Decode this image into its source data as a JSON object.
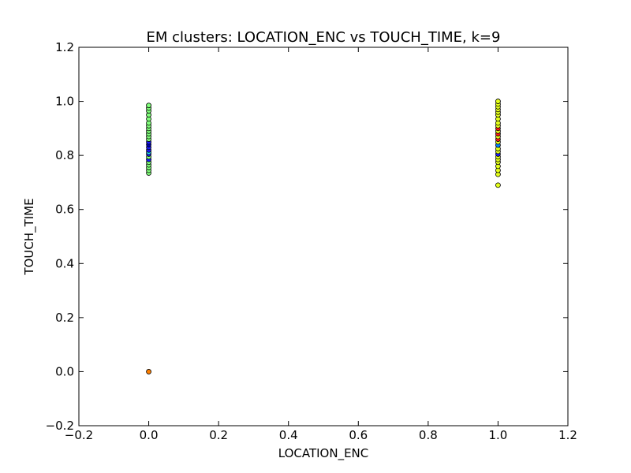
{
  "chart_data": {
    "type": "scatter",
    "title": "EM clusters: LOCATION_ENC vs TOUCH_TIME, k=9",
    "xlabel": "LOCATION_ENC",
    "ylabel": "TOUCH_TIME",
    "xlim": [
      -0.2,
      1.2
    ],
    "ylim": [
      -0.2,
      1.2
    ],
    "xticks": [
      -0.2,
      0.0,
      0.2,
      0.4,
      0.6,
      0.8,
      1.0,
      1.2
    ],
    "yticks": [
      -0.2,
      0.0,
      0.2,
      0.4,
      0.6,
      0.8,
      1.0,
      1.2
    ],
    "xtick_labels": [
      "−0.2",
      "0.0",
      "0.2",
      "0.4",
      "0.6",
      "0.8",
      "1.0",
      "1.2"
    ],
    "ytick_labels": [
      "−0.2",
      "0.0",
      "0.2",
      "0.4",
      "0.6",
      "0.8",
      "1.0",
      "1.2"
    ],
    "grid": false,
    "points": [
      {
        "x": 0,
        "y": 0.0,
        "color": "#ff7f00"
      },
      {
        "x": 0,
        "y": 0.735,
        "color": "#80ff7a"
      },
      {
        "x": 0,
        "y": 0.745,
        "color": "#80ff7a"
      },
      {
        "x": 0,
        "y": 0.755,
        "color": "#80ff7a"
      },
      {
        "x": 0,
        "y": 0.765,
        "color": "#80ff7a"
      },
      {
        "x": 0,
        "y": 0.775,
        "color": "#80ff7a"
      },
      {
        "x": 0,
        "y": 0.785,
        "color": "#1a1aff"
      },
      {
        "x": 0,
        "y": 0.795,
        "color": "#80ff7a"
      },
      {
        "x": 0,
        "y": 0.805,
        "color": "#1a1aff"
      },
      {
        "x": 0,
        "y": 0.812,
        "color": "#20e0ff"
      },
      {
        "x": 0,
        "y": 0.82,
        "color": "#1a1aff"
      },
      {
        "x": 0,
        "y": 0.83,
        "color": "#1a1aff"
      },
      {
        "x": 0,
        "y": 0.84,
        "color": "#0000b0"
      },
      {
        "x": 0,
        "y": 0.85,
        "color": "#1a1aff"
      },
      {
        "x": 0,
        "y": 0.86,
        "color": "#80ff7a"
      },
      {
        "x": 0,
        "y": 0.87,
        "color": "#80ff7a"
      },
      {
        "x": 0,
        "y": 0.88,
        "color": "#80ff7a"
      },
      {
        "x": 0,
        "y": 0.89,
        "color": "#80ff7a"
      },
      {
        "x": 0,
        "y": 0.9,
        "color": "#80ff7a"
      },
      {
        "x": 0,
        "y": 0.91,
        "color": "#80ff7a"
      },
      {
        "x": 0,
        "y": 0.92,
        "color": "#80ff7a"
      },
      {
        "x": 0,
        "y": 0.935,
        "color": "#80ff7a"
      },
      {
        "x": 0,
        "y": 0.95,
        "color": "#80ff7a"
      },
      {
        "x": 0,
        "y": 0.965,
        "color": "#80ff7a"
      },
      {
        "x": 0,
        "y": 0.975,
        "color": "#80ff7a"
      },
      {
        "x": 0,
        "y": 0.985,
        "color": "#80ff7a"
      },
      {
        "x": 1,
        "y": 0.69,
        "color": "#e4ff1a"
      },
      {
        "x": 1,
        "y": 0.73,
        "color": "#e4ff1a"
      },
      {
        "x": 1,
        "y": 0.745,
        "color": "#e4ff1a"
      },
      {
        "x": 1,
        "y": 0.76,
        "color": "#e4ff1a"
      },
      {
        "x": 1,
        "y": 0.775,
        "color": "#e4ff1a"
      },
      {
        "x": 1,
        "y": 0.785,
        "color": "#e4ff1a"
      },
      {
        "x": 1,
        "y": 0.795,
        "color": "#e4ff1a"
      },
      {
        "x": 1,
        "y": 0.805,
        "color": "#1a1aff"
      },
      {
        "x": 1,
        "y": 0.815,
        "color": "#e4ff1a"
      },
      {
        "x": 1,
        "y": 0.825,
        "color": "#e4ff1a"
      },
      {
        "x": 1,
        "y": 0.838,
        "color": "#0080ff"
      },
      {
        "x": 1,
        "y": 0.85,
        "color": "#e4ff1a"
      },
      {
        "x": 1,
        "y": 0.86,
        "color": "#ff1a1a"
      },
      {
        "x": 1,
        "y": 0.87,
        "color": "#e4ff1a"
      },
      {
        "x": 1,
        "y": 0.88,
        "color": "#ff1a1a"
      },
      {
        "x": 1,
        "y": 0.89,
        "color": "#e4ff1a"
      },
      {
        "x": 1,
        "y": 0.9,
        "color": "#ff1a1a"
      },
      {
        "x": 1,
        "y": 0.91,
        "color": "#e4ff1a"
      },
      {
        "x": 1,
        "y": 0.92,
        "color": "#e4ff1a"
      },
      {
        "x": 1,
        "y": 0.935,
        "color": "#e4ff1a"
      },
      {
        "x": 1,
        "y": 0.95,
        "color": "#e4ff1a"
      },
      {
        "x": 1,
        "y": 0.96,
        "color": "#e4ff1a"
      },
      {
        "x": 1,
        "y": 0.97,
        "color": "#e4ff1a"
      },
      {
        "x": 1,
        "y": 0.98,
        "color": "#e4ff1a"
      },
      {
        "x": 1,
        "y": 0.99,
        "color": "#e4ff1a"
      },
      {
        "x": 1,
        "y": 1.0,
        "color": "#e4ff1a"
      }
    ]
  }
}
